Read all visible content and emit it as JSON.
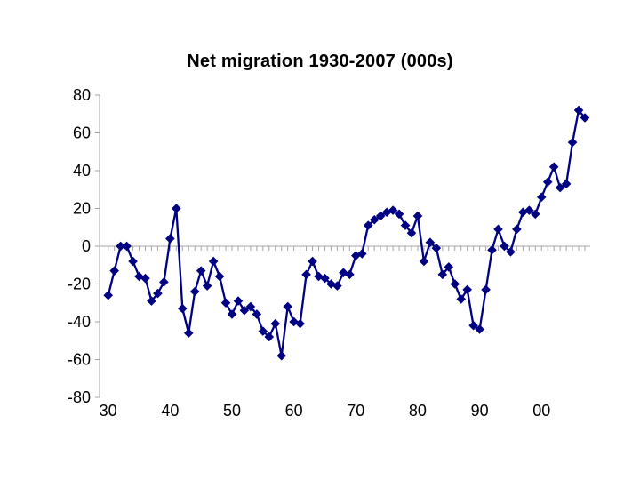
{
  "title": "Net migration 1930-2007 (000s)",
  "chart_data": {
    "type": "line",
    "title": "Net migration 1930-2007 (000s)",
    "series_name": "Net migration (000s)",
    "marker": "diamond",
    "line_color": "#000082",
    "axis_color": "#a6a6a6",
    "label_color": "#000000",
    "grid": "zero-line-with-year-ticks",
    "legend": "none",
    "ylim": [
      -80,
      80
    ],
    "y_ticks": [
      80,
      60,
      40,
      20,
      0,
      -20,
      -40,
      -60,
      -80
    ],
    "x_tick_years": [
      1930,
      1940,
      1950,
      1960,
      1970,
      1980,
      1990,
      2000
    ],
    "x_tick_labels": [
      "30",
      "40",
      "50",
      "60",
      "70",
      "80",
      "90",
      "00"
    ],
    "x": [
      1930,
      1931,
      1932,
      1933,
      1934,
      1935,
      1936,
      1937,
      1938,
      1939,
      1940,
      1941,
      1942,
      1943,
      1944,
      1945,
      1946,
      1947,
      1948,
      1949,
      1950,
      1951,
      1952,
      1953,
      1954,
      1955,
      1956,
      1957,
      1958,
      1959,
      1960,
      1961,
      1962,
      1963,
      1964,
      1965,
      1966,
      1967,
      1968,
      1969,
      1970,
      1971,
      1972,
      1973,
      1974,
      1975,
      1976,
      1977,
      1978,
      1979,
      1980,
      1981,
      1982,
      1983,
      1984,
      1985,
      1986,
      1987,
      1988,
      1989,
      1990,
      1991,
      1992,
      1993,
      1994,
      1995,
      1996,
      1997,
      1998,
      1999,
      2000,
      2001,
      2002,
      2003,
      2004,
      2005,
      2006,
      2007
    ],
    "values": [
      -26,
      -13,
      0,
      0,
      -8,
      -16,
      -17,
      -29,
      -25,
      -19,
      4,
      20,
      -33,
      -46,
      -24,
      -13,
      -21,
      -8,
      -16,
      -30,
      -36,
      -29,
      -34,
      -32,
      -36,
      -45,
      -48,
      -41,
      -58,
      -32,
      -40,
      -41,
      -15,
      -8,
      -16,
      -17,
      -20,
      -21,
      -14,
      -15,
      -5,
      -4,
      11,
      14,
      16,
      18,
      19,
      17,
      11,
      7,
      16,
      -8,
      2,
      -1,
      -15,
      -11,
      -20,
      -28,
      -23,
      -42,
      -44,
      -23,
      -2,
      9,
      0,
      -3,
      9,
      18,
      19,
      17,
      26,
      34,
      42,
      31,
      33,
      55,
      72,
      68
    ]
  }
}
